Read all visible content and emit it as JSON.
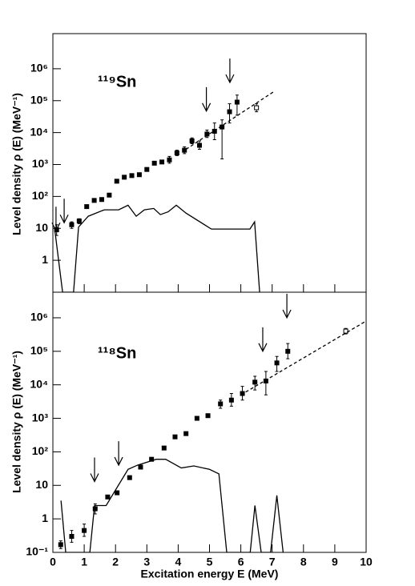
{
  "chart_data": [
    {
      "type": "scatter",
      "label": "¹¹⁹Sn",
      "ylabel": "Level density ρ (E) (MeV⁻¹)",
      "xlim": [
        0,
        10
      ],
      "ylim": [
        0.1,
        12600000
      ],
      "log_y": true,
      "yticks": [
        1,
        10,
        {
          "value": 100,
          "label": "10²"
        },
        {
          "value": 1000,
          "label": "10³"
        },
        {
          "value": 10000,
          "label": "10⁴"
        },
        {
          "value": 100000,
          "label": "10⁵"
        },
        {
          "value": 1000000,
          "label": "10⁶"
        }
      ],
      "series": [
        {
          "style": "filled-square",
          "color": "#000000",
          "x": [
            0.12,
            0.6,
            0.84,
            1.08,
            1.32,
            1.56,
            1.8,
            2.04,
            2.28,
            2.52,
            2.76,
            3.0,
            3.24,
            3.48,
            3.72,
            3.96,
            4.2,
            4.44,
            4.68,
            4.92,
            5.16,
            5.4,
            5.64,
            5.88
          ],
          "y": [
            9,
            13,
            17,
            48,
            75,
            80,
            110,
            300,
            400,
            450,
            480,
            700,
            1100,
            1200,
            1400,
            2300,
            2800,
            5500,
            4000,
            9000,
            11000,
            15000,
            45000,
            90000
          ],
          "err_low": [
            6,
            10,
            14,
            null,
            null,
            null,
            null,
            null,
            null,
            null,
            null,
            null,
            null,
            null,
            1100,
            1900,
            2200,
            4500,
            3000,
            7000,
            6000,
            1500,
            20000,
            35000
          ],
          "err_high": [
            13,
            16,
            20,
            null,
            null,
            null,
            null,
            null,
            null,
            null,
            null,
            null,
            null,
            null,
            1800,
            2800,
            3600,
            6800,
            5500,
            12000,
            20000,
            25000,
            80000,
            150000
          ]
        },
        {
          "style": "open-square",
          "color": "#000000",
          "x": [
            6.5
          ],
          "y": [
            60000
          ],
          "err_low": [
            45000
          ],
          "err_high": [
            80000
          ]
        },
        {
          "style": "dashed",
          "color": "#000000",
          "x": [
            4.25,
            7.08
          ],
          "y": [
            3000,
            200000
          ]
        },
        {
          "style": "solid",
          "color": "#000000",
          "x": [
            0.05,
            0.31,
            0.66,
            0.82,
            1.13,
            1.64,
            2.1,
            2.4,
            2.66,
            2.92,
            3.22,
            3.43,
            3.68,
            3.94,
            4.25,
            5.06,
            6.29,
            6.44,
            6.6
          ],
          "y": [
            11,
            0.1,
            0.1,
            11,
            24,
            38,
            38,
            53,
            24,
            38,
            42,
            27,
            33,
            53,
            30,
            9.5,
            9.5,
            16,
            0.1
          ]
        }
      ],
      "arrows": {
        "x": [
          0.1,
          0.36,
          4.9,
          5.65
        ],
        "y": [
          8.4,
          15,
          47000,
          370000
        ]
      }
    },
    {
      "type": "scatter",
      "label": "¹¹⁸Sn",
      "ylabel": "Level density ρ (E) (MeV⁻¹)",
      "xlabel": "Excitation energy E (MeV)",
      "xlim": [
        0,
        10
      ],
      "xticks": [
        0,
        1,
        2,
        3,
        4,
        5,
        6,
        7,
        8,
        9,
        10
      ],
      "ylim": [
        0.1,
        5800000
      ],
      "log_y": true,
      "yticks": [
        {
          "value": 0.1,
          "label": "10⁻¹"
        },
        1,
        10,
        {
          "value": 100,
          "label": "10²"
        },
        {
          "value": 1000,
          "label": "10³"
        },
        {
          "value": 10000,
          "label": "10⁴"
        },
        {
          "value": 100000,
          "label": "10⁵"
        },
        {
          "value": 1000000,
          "label": "10⁶"
        }
      ],
      "series": [
        {
          "style": "filled-square",
          "color": "#000000",
          "x": [
            0.25,
            0.6,
            1.0,
            1.35,
            1.75,
            2.05,
            2.45,
            2.8,
            3.15,
            3.55,
            3.9,
            4.25,
            4.6,
            4.95,
            5.35,
            5.7,
            6.05,
            6.45,
            6.8,
            7.15,
            7.5
          ],
          "y": [
            0.17,
            0.3,
            0.45,
            2,
            4.5,
            6,
            17,
            35,
            60,
            130,
            280,
            350,
            1000,
            1200,
            2700,
            3500,
            5500,
            12000,
            13000,
            45000,
            100000
          ],
          "err_low": [
            0.13,
            0.2,
            0.3,
            1.4,
            null,
            null,
            null,
            null,
            null,
            null,
            null,
            null,
            null,
            null,
            2000,
            2300,
            3500,
            7000,
            5000,
            25000,
            60000
          ],
          "err_high": [
            0.22,
            0.45,
            0.7,
            2.8,
            null,
            null,
            null,
            null,
            null,
            null,
            null,
            null,
            null,
            null,
            3500,
            5500,
            9000,
            18000,
            25000,
            70000,
            170000
          ]
        },
        {
          "style": "open-square",
          "color": "#000000",
          "x": [
            9.35
          ],
          "y": [
            400000
          ],
          "err_low": [
            330000
          ],
          "err_high": [
            480000
          ]
        },
        {
          "style": "dashed",
          "color": "#000000",
          "x": [
            6.0,
            10
          ],
          "y": [
            5000,
            800000
          ]
        },
        {
          "style": "solid",
          "color": "#000000",
          "x": [
            0.26,
            0.41,
            1.18,
            1.33,
            1.7,
            2.4,
            2.7,
            3.3,
            3.6,
            4.1,
            4.5,
            5.0,
            5.3,
            5.55,
            6.3,
            6.45,
            6.65,
            6.95,
            7.15,
            7.35
          ],
          "y": [
            3.5,
            0.1,
            0.1,
            2.5,
            2.5,
            30,
            40,
            60,
            60,
            33,
            38,
            30,
            22,
            0.1,
            0.1,
            2.5,
            0.1,
            0.1,
            5,
            0.1
          ]
        }
      ],
      "arrows": {
        "x": [
          1.33,
          2.1,
          6.7,
          7.47
        ],
        "y": [
          13,
          40,
          100000,
          1000000
        ]
      }
    }
  ]
}
